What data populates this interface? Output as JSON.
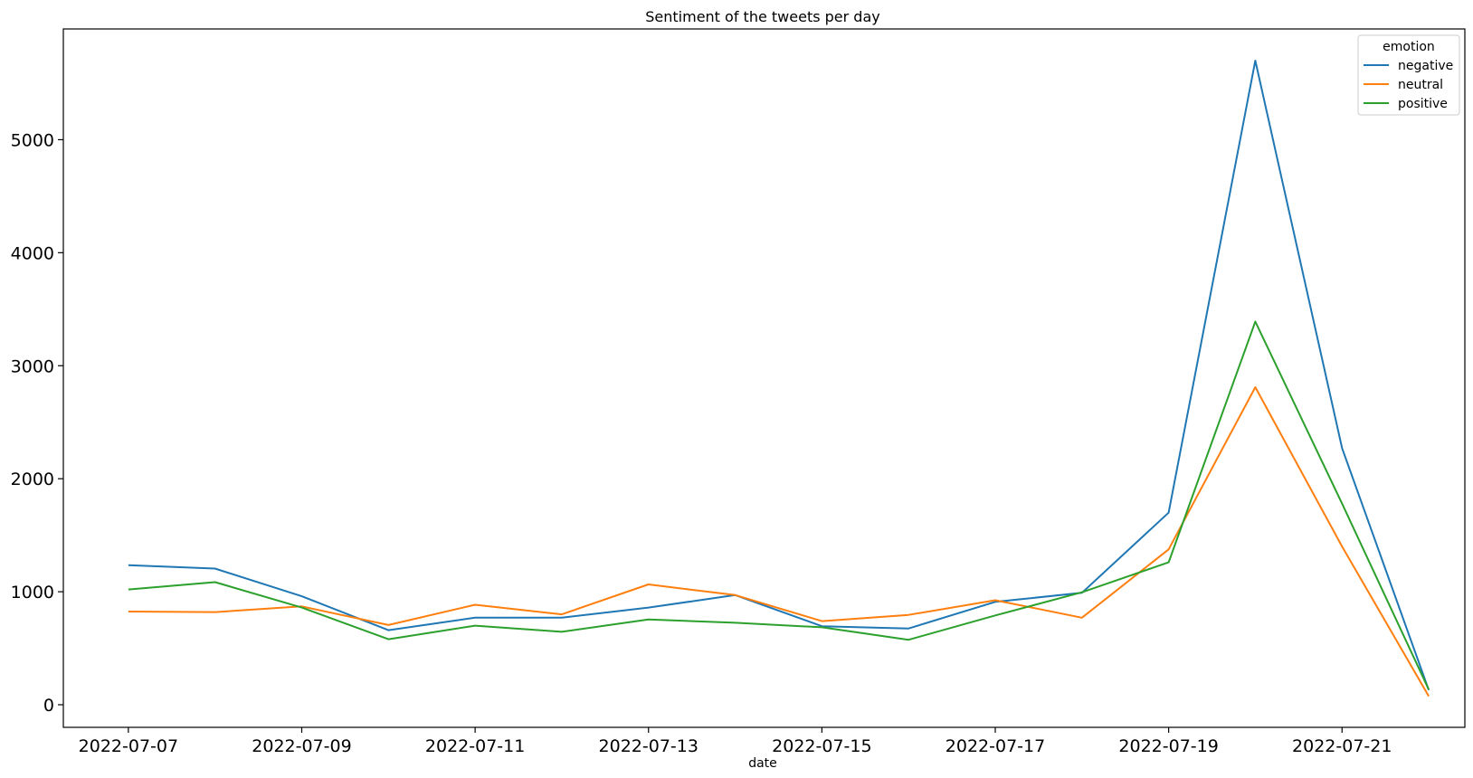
{
  "chart_data": {
    "type": "line",
    "title": "Sentiment of the tweets per day",
    "xlabel": "date",
    "ylabel": "",
    "x": [
      "2022-07-07",
      "2022-07-08",
      "2022-07-09",
      "2022-07-10",
      "2022-07-11",
      "2022-07-12",
      "2022-07-13",
      "2022-07-14",
      "2022-07-15",
      "2022-07-16",
      "2022-07-17",
      "2022-07-18",
      "2022-07-19",
      "2022-07-20",
      "2022-07-21",
      "2022-07-22"
    ],
    "x_tick_labels": [
      "2022-07-07",
      "2022-07-09",
      "2022-07-11",
      "2022-07-13",
      "2022-07-15",
      "2022-07-17",
      "2022-07-19",
      "2022-07-21"
    ],
    "y_ticks": [
      0,
      1000,
      2000,
      3000,
      4000,
      5000
    ],
    "xlim": [
      "2022-07-06T06:00",
      "2022-07-22T10:00"
    ],
    "ylim": [
      -200,
      5980
    ],
    "grid": false,
    "legend": {
      "title": "emotion",
      "placement": "top-right"
    },
    "series": [
      {
        "name": "negative",
        "color": "#1f77b4",
        "values": [
          1235,
          1205,
          960,
          660,
          770,
          770,
          860,
          970,
          695,
          675,
          910,
          990,
          1700,
          5700,
          2270,
          130
        ]
      },
      {
        "name": "neutral",
        "color": "#ff7f0e",
        "values": [
          825,
          820,
          870,
          705,
          885,
          800,
          1065,
          970,
          740,
          795,
          925,
          770,
          1375,
          2810,
          1400,
          75
        ]
      },
      {
        "name": "positive",
        "color": "#2ca02c",
        "values": [
          1020,
          1085,
          860,
          580,
          700,
          645,
          755,
          725,
          685,
          575,
          790,
          995,
          1260,
          3390,
          1780,
          135
        ]
      }
    ]
  }
}
